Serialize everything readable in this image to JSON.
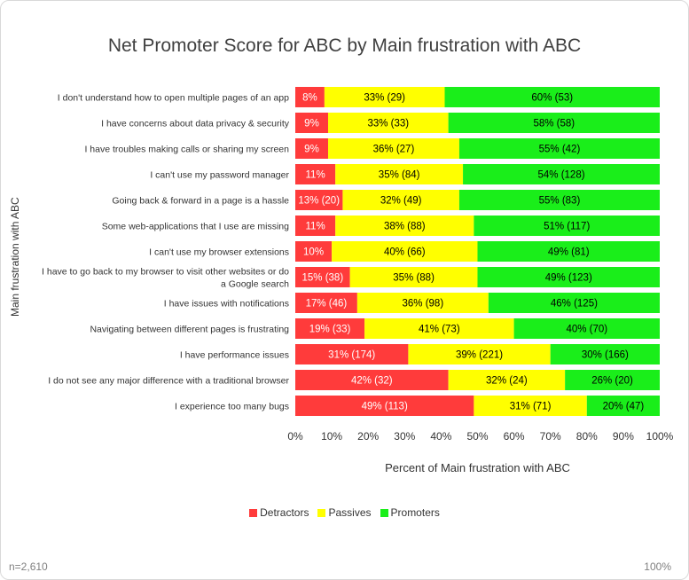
{
  "chart_data": {
    "type": "bar",
    "orientation": "horizontal",
    "stacked": true,
    "percent_stacked": true,
    "title": "Net Promoter Score for ABC by Main frustration with ABC",
    "xlabel": "Percent of Main frustration with ABC",
    "ylabel": "Main frustration with ABC",
    "xlim": [
      0,
      100
    ],
    "x_ticks": [
      "0%",
      "10%",
      "20%",
      "30%",
      "40%",
      "50%",
      "60%",
      "70%",
      "80%",
      "90%",
      "100%"
    ],
    "legend_position": "bottom",
    "categories": [
      "I don't understand how to open multiple pages of an app",
      "I have concerns about data privacy & security",
      "I have troubles making calls or sharing my screen",
      "I can't use my password manager",
      "Going back & forward in a page is a hassle",
      "Some web-applications that I use are missing",
      "I can't use my browser extensions",
      "I have to go back to my browser to visit other websites or do a Google search",
      "I have issues with notifications",
      "Navigating between different pages is frustrating",
      "I have performance issues",
      "I do not see any major difference with a traditional browser",
      "I experience too many bugs"
    ],
    "category_lines": [
      [
        "I don't understand how to open multiple pages of an app"
      ],
      [
        "I have concerns about data privacy & security"
      ],
      [
        "I have troubles making calls or sharing my screen"
      ],
      [
        "I can't use my password manager"
      ],
      [
        "Going back & forward in a page is a hassle"
      ],
      [
        "Some web-applications that I use are missing"
      ],
      [
        "I can't use my browser extensions"
      ],
      [
        "I have to go back to my browser to visit other websites or do",
        "a Google search"
      ],
      [
        "I have issues with notifications"
      ],
      [
        "Navigating between different pages is frustrating"
      ],
      [
        "I have performance issues"
      ],
      [
        "I do not see any major difference with a traditional browser"
      ],
      [
        "I experience too many bugs"
      ]
    ],
    "series": [
      {
        "name": "Detractors",
        "color": "#ff3b3b",
        "label_color": "#ffffff",
        "values": [
          8,
          9,
          9,
          11,
          13,
          11,
          10,
          15,
          17,
          19,
          31,
          42,
          49
        ],
        "labels": [
          "8%",
          "9%",
          "9%",
          "11%",
          "13% (20)",
          "11%",
          "10%",
          "15% (38)",
          "17% (46)",
          "19% (33)",
          "31% (174)",
          "42% (32)",
          "49% (113)"
        ]
      },
      {
        "name": "Passives",
        "color": "#ffff00",
        "label_color": "#000000",
        "values": [
          33,
          33,
          36,
          35,
          32,
          38,
          40,
          35,
          36,
          41,
          39,
          32,
          31
        ],
        "labels": [
          "33% (29)",
          "33% (33)",
          "36% (27)",
          "35% (84)",
          "32% (49)",
          "38% (88)",
          "40% (66)",
          "35% (88)",
          "36% (98)",
          "41% (73)",
          "39% (221)",
          "32% (24)",
          "31% (71)"
        ]
      },
      {
        "name": "Promoters",
        "color": "#1aee1a",
        "label_color": "#000000",
        "values": [
          60,
          58,
          55,
          54,
          55,
          51,
          49,
          49,
          46,
          40,
          30,
          26,
          20
        ],
        "labels": [
          "60% (53)",
          "58% (58)",
          "55% (42)",
          "54% (128)",
          "55% (83)",
          "51% (117)",
          "49% (81)",
          "49% (123)",
          "46% (125)",
          "40% (70)",
          "30% (166)",
          "26% (20)",
          "20% (47)"
        ]
      }
    ]
  },
  "footer": {
    "sample_size": "n=2,610",
    "zoom": "100%"
  }
}
